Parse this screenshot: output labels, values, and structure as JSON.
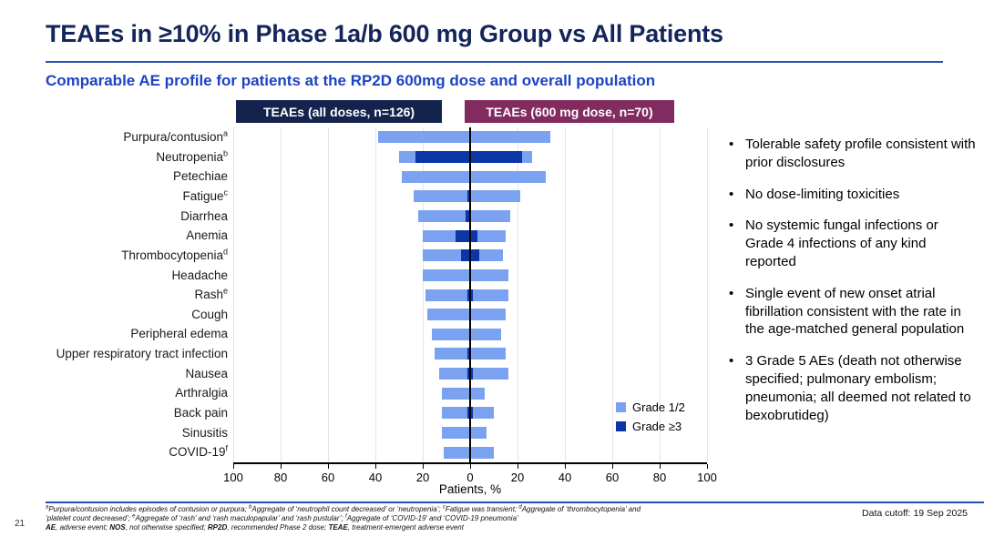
{
  "slide": {
    "title": "TEAEs in ≥10% in Phase 1a/b 600 mg Group vs All Patients",
    "subtitle": "Comparable AE profile for patients at the RP2D 600mg dose and overall population",
    "page_number": "21",
    "data_cutoff": "Data cutoff: 19 Sep 2025"
  },
  "bullets": [
    "Tolerable safety profile consistent with prior disclosures",
    "No dose-limiting toxicities",
    "No systemic fungal infections or Grade 4 infections of any kind reported",
    "Single event of new onset atrial fibrillation consistent with the rate in the age-matched general population",
    "3 Grade 5 AEs (death not otherwise specified; pulmonary embolism; pneumonia; all deemed not related to bexobrutideg)"
  ],
  "footnotes": {
    "line1": [
      {
        "sup": "a"
      },
      {
        "text": "Purpura/contusion includes episodes of contusion or purpura; "
      },
      {
        "sup": "b"
      },
      {
        "text": "Aggregate of ‘neutrophil count decreased’ or ‘neutropenia’; "
      },
      {
        "sup": "c"
      },
      {
        "text": "Fatigue was transient; "
      },
      {
        "sup": "d"
      },
      {
        "text": "Aggregate of ‘thrombocytopenia’ and"
      }
    ],
    "line2": [
      {
        "text": "‘platelet count decreased’; "
      },
      {
        "sup": "e"
      },
      {
        "text": "Aggregate of ‘rash’ and ‘rash maculopapular’ and ‘rash pustular’; "
      },
      {
        "sup": "f"
      },
      {
        "text": "Aggregate of ‘COVID-19’ and ‘COVID-19 pneumonia’"
      }
    ],
    "line3": [
      {
        "text": "AE",
        "bold": true
      },
      {
        "text": ", adverse event; "
      },
      {
        "text": "NOS",
        "bold": true
      },
      {
        "text": ", not otherwise specified; "
      },
      {
        "text": "RP2D",
        "bold": true
      },
      {
        "text": ", recommended Phase 2 dose; "
      },
      {
        "text": "TEAE",
        "bold": true
      },
      {
        "text": ", treatment-emergent adverse event"
      }
    ]
  },
  "chart_data": {
    "type": "bar",
    "subtype": "butterfly-stacked",
    "xlabel": "Patients, %",
    "x_max": 100,
    "axis_ticks": [
      100,
      80,
      60,
      40,
      20,
      0,
      20,
      40,
      60,
      80,
      100
    ],
    "grid": true,
    "left_header": {
      "label": "TEAEs (all doses, n=126)",
      "color": "#14234E"
    },
    "right_header": {
      "label": "TEAEs (600 mg dose, n=70)",
      "color": "#822B61"
    },
    "legend": [
      {
        "label": "Grade 1/2",
        "color": "#7BA2F0"
      },
      {
        "label": "Grade ≥3",
        "color": "#0A36A6"
      }
    ],
    "legend_position": "inside-right",
    "rows": [
      {
        "label": "Purpura/contusion",
        "sup": "a",
        "left": {
          "total": 39,
          "grade3": 0
        },
        "right": {
          "total": 34,
          "grade3": 0
        }
      },
      {
        "label": "Neutropenia",
        "sup": "b",
        "left": {
          "total": 30,
          "grade3": 23
        },
        "right": {
          "total": 26,
          "grade3": 22
        }
      },
      {
        "label": "Petechiae",
        "sup": "",
        "left": {
          "total": 29,
          "grade3": 0
        },
        "right": {
          "total": 32,
          "grade3": 0
        }
      },
      {
        "label": "Fatigue",
        "sup": "c",
        "left": {
          "total": 24,
          "grade3": 1
        },
        "right": {
          "total": 21,
          "grade3": 0
        }
      },
      {
        "label": "Diarrhea",
        "sup": "",
        "left": {
          "total": 22,
          "grade3": 2
        },
        "right": {
          "total": 17,
          "grade3": 0
        }
      },
      {
        "label": "Anemia",
        "sup": "",
        "left": {
          "total": 20,
          "grade3": 6
        },
        "right": {
          "total": 15,
          "grade3": 3
        }
      },
      {
        "label": "Thrombocytopenia",
        "sup": "d",
        "left": {
          "total": 20,
          "grade3": 4
        },
        "right": {
          "total": 14,
          "grade3": 4
        }
      },
      {
        "label": "Headache",
        "sup": "",
        "left": {
          "total": 20,
          "grade3": 0
        },
        "right": {
          "total": 16,
          "grade3": 0
        }
      },
      {
        "label": "Rash",
        "sup": "e",
        "left": {
          "total": 19,
          "grade3": 1
        },
        "right": {
          "total": 16,
          "grade3": 1
        }
      },
      {
        "label": "Cough",
        "sup": "",
        "left": {
          "total": 18,
          "grade3": 0
        },
        "right": {
          "total": 15,
          "grade3": 0
        }
      },
      {
        "label": "Peripheral edema",
        "sup": "",
        "left": {
          "total": 16,
          "grade3": 0
        },
        "right": {
          "total": 13,
          "grade3": 0
        }
      },
      {
        "label": "Upper respiratory tract infection",
        "sup": "",
        "left": {
          "total": 15,
          "grade3": 1
        },
        "right": {
          "total": 15,
          "grade3": 0
        }
      },
      {
        "label": "Nausea",
        "sup": "",
        "left": {
          "total": 13,
          "grade3": 1
        },
        "right": {
          "total": 16,
          "grade3": 1
        }
      },
      {
        "label": "Arthralgia",
        "sup": "",
        "left": {
          "total": 12,
          "grade3": 0
        },
        "right": {
          "total": 6,
          "grade3": 0
        }
      },
      {
        "label": "Back pain",
        "sup": "",
        "left": {
          "total": 12,
          "grade3": 1
        },
        "right": {
          "total": 10,
          "grade3": 1
        }
      },
      {
        "label": "Sinusitis",
        "sup": "",
        "left": {
          "total": 12,
          "grade3": 0
        },
        "right": {
          "total": 7,
          "grade3": 0
        }
      },
      {
        "label": "COVID-19",
        "sup": "f",
        "left": {
          "total": 11,
          "grade3": 0
        },
        "right": {
          "total": 10,
          "grade3": 0
        }
      }
    ]
  },
  "colors": {
    "title_navy": "#13255B",
    "subtitle_blue": "#1C43C3",
    "rule_blue": "#2750B4",
    "grade12_light_blue": "#7BA2F0",
    "grade3_dark_blue": "#0A36A6",
    "header_navy": "#14234E",
    "header_purple": "#822B61"
  }
}
